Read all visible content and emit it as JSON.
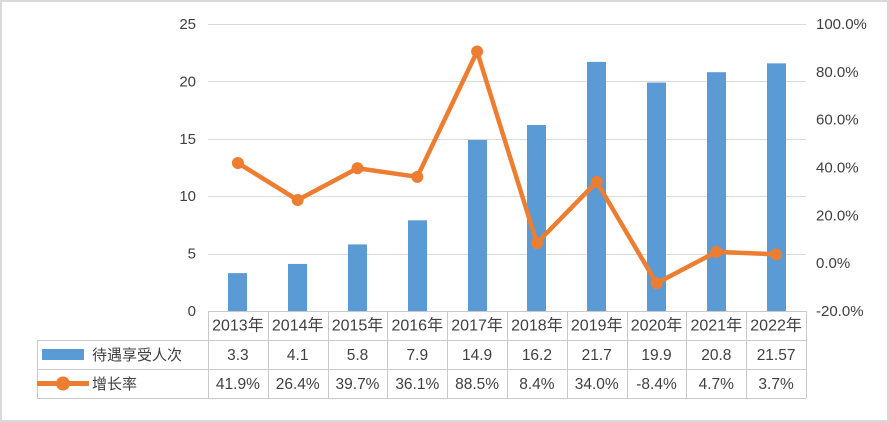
{
  "colors": {
    "bar": "#5B9BD5",
    "line": "#ED7D31",
    "gridline": "#D9D9D9",
    "table_border": "#C9C9C9",
    "text": "#404040",
    "frame": "#D9D9D9",
    "background": "#FFFFFF"
  },
  "chart_data": {
    "type": "bar",
    "subtype": "combo-bar-line-with-data-table",
    "categories": [
      "2013年",
      "2014年",
      "2015年",
      "2016年",
      "2017年",
      "2018年",
      "2019年",
      "2020年",
      "2021年",
      "2022年"
    ],
    "series": [
      {
        "name": "待遇享受人次",
        "chart": "bar",
        "axis": "left",
        "color": "#5B9BD5",
        "values": [
          3.3,
          4.1,
          5.8,
          7.9,
          14.9,
          16.2,
          21.7,
          19.9,
          20.8,
          21.57
        ],
        "labels": [
          "3.3",
          "4.1",
          "5.8",
          "7.9",
          "14.9",
          "16.2",
          "21.7",
          "19.9",
          "20.8",
          "21.57"
        ]
      },
      {
        "name": "增长率",
        "chart": "line",
        "axis": "right",
        "color": "#ED7D31",
        "values": [
          41.9,
          26.4,
          39.7,
          36.1,
          88.5,
          8.4,
          34.0,
          -8.4,
          4.7,
          3.7
        ],
        "labels": [
          "41.9%",
          "26.4%",
          "39.7%",
          "36.1%",
          "88.5%",
          "8.4%",
          "34.0%",
          "-8.4%",
          "4.7%",
          "3.7%"
        ]
      }
    ],
    "left_axis": {
      "min": 0,
      "max": 25,
      "ticks": [
        {
          "v": 25,
          "label": "25"
        },
        {
          "v": 20,
          "label": "20"
        },
        {
          "v": 15,
          "label": "15"
        },
        {
          "v": 10,
          "label": "10"
        },
        {
          "v": 5,
          "label": "5"
        },
        {
          "v": 0,
          "label": "0"
        }
      ]
    },
    "right_axis": {
      "min": -20,
      "max": 100,
      "ticks": [
        {
          "v": 100,
          "label": "100.0%"
        },
        {
          "v": 80,
          "label": "80.0%"
        },
        {
          "v": 60,
          "label": "60.0%"
        },
        {
          "v": 40,
          "label": "40.0%"
        },
        {
          "v": 20,
          "label": "20.0%"
        },
        {
          "v": 0,
          "label": "0.0%"
        },
        {
          "v": -20,
          "label": "-20.0%"
        }
      ]
    },
    "gridlines": "horizontal-major-left-axis",
    "legend_position": "data-table-left"
  }
}
